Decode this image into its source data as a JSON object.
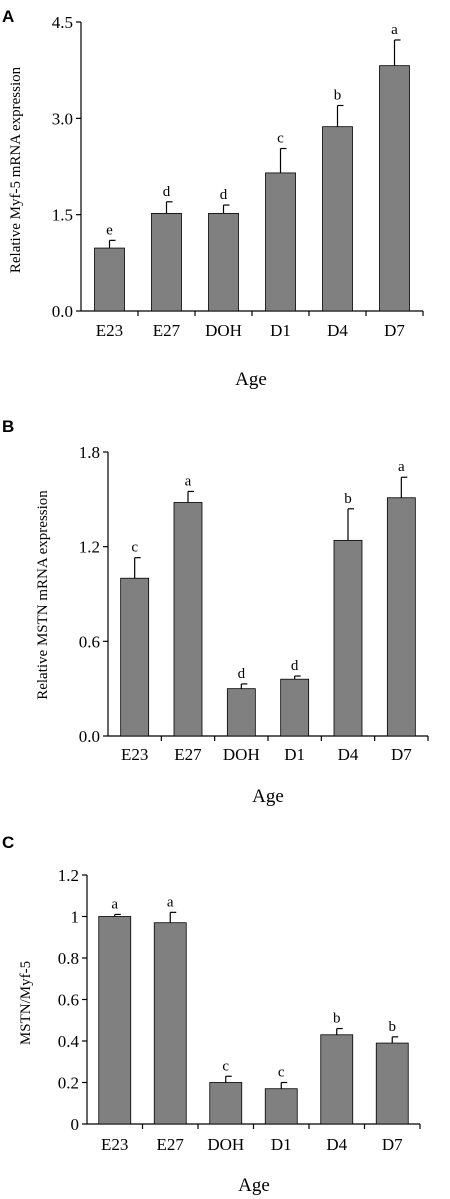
{
  "chart_data": [
    {
      "panel": "A",
      "type": "bar",
      "categories": [
        "E23",
        "E27",
        "DOH",
        "D1",
        "D4",
        "D7"
      ],
      "values": [
        0.98,
        1.52,
        1.52,
        2.15,
        2.87,
        3.82
      ],
      "errors": [
        0.12,
        0.18,
        0.13,
        0.38,
        0.33,
        0.4
      ],
      "letters": [
        "e",
        "d",
        "d",
        "c",
        "b",
        "a"
      ],
      "ylabel": "Relative Myf-5 mRNA expression",
      "xlabel": "Age",
      "ylim": [
        0,
        4.5
      ],
      "yticks": [
        "0.0",
        "1.5",
        "3.0",
        "4.5"
      ],
      "bar_color": "#808080"
    },
    {
      "panel": "B",
      "type": "bar",
      "categories": [
        "E23",
        "E27",
        "DOH",
        "D1",
        "D4",
        "D7"
      ],
      "values": [
        1.0,
        1.48,
        0.3,
        0.36,
        1.24,
        1.51
      ],
      "errors": [
        0.13,
        0.07,
        0.03,
        0.02,
        0.2,
        0.13
      ],
      "letters": [
        "c",
        "a",
        "d",
        "d",
        "b",
        "a"
      ],
      "ylabel": "Relative MSTN mRNA expression",
      "xlabel": "Age",
      "ylim": [
        0,
        1.8
      ],
      "yticks": [
        "0.0",
        "0.6",
        "1.2",
        "1.8"
      ],
      "bar_color": "#808080"
    },
    {
      "panel": "C",
      "type": "bar",
      "categories": [
        "E23",
        "E27",
        "DOH",
        "D1",
        "D4",
        "D7"
      ],
      "values": [
        1.0,
        0.97,
        0.2,
        0.17,
        0.43,
        0.39
      ],
      "errors": [
        0.01,
        0.05,
        0.03,
        0.03,
        0.03,
        0.03
      ],
      "letters": [
        "a",
        "a",
        "c",
        "c",
        "b",
        "b"
      ],
      "ylabel": "MSTN/Myf-5",
      "xlabel": "Age",
      "ylim": [
        0,
        1.2
      ],
      "yticks": [
        "0",
        "0.2",
        "0.4",
        "0.6",
        "0.8",
        "1",
        "1.2"
      ],
      "bar_color": "#808080"
    }
  ]
}
